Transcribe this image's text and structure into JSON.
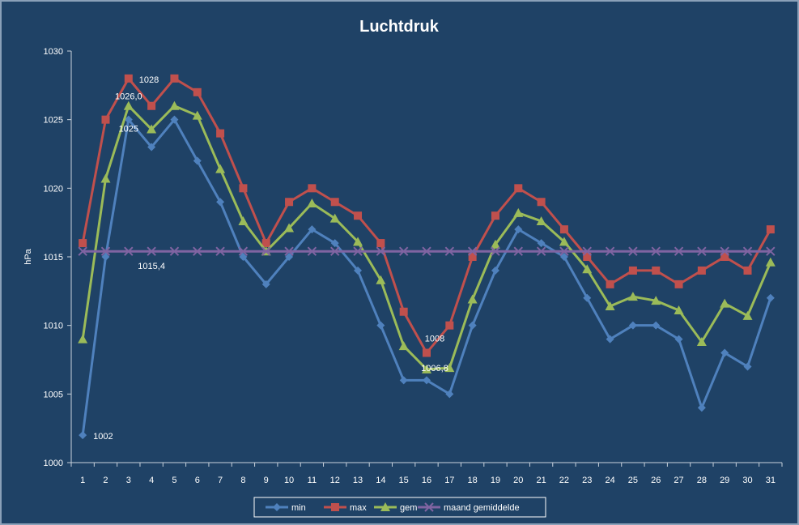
{
  "chart_data": {
    "type": "line",
    "title": "Luchtdruk",
    "ylabel": "hPa",
    "xlabel": "",
    "ylim": [
      1000,
      1030
    ],
    "ytick_step": 5,
    "grid": false,
    "legend_position": "bottom",
    "categories": [
      "1",
      "2",
      "3",
      "4",
      "5",
      "6",
      "7",
      "8",
      "9",
      "10",
      "11",
      "12",
      "13",
      "14",
      "15",
      "16",
      "17",
      "18",
      "19",
      "20",
      "21",
      "22",
      "23",
      "24",
      "25",
      "26",
      "27",
      "28",
      "29",
      "30",
      "31"
    ],
    "series": [
      {
        "name": "min",
        "color": "#4f81bd",
        "marker": "diamond",
        "values": [
          1002,
          1015,
          1025,
          1023,
          1025,
          1022,
          1019,
          1015,
          1013,
          1015,
          1017,
          1016,
          1014,
          1010,
          1006,
          1006,
          1005,
          1010,
          1014,
          1017,
          1016,
          1015,
          1012,
          1009,
          1010,
          1010,
          1009,
          1004,
          1008,
          1007,
          1012
        ]
      },
      {
        "name": "max",
        "color": "#c0504d",
        "marker": "square",
        "values": [
          1016,
          1025,
          1028,
          1026,
          1028,
          1027,
          1024,
          1020,
          1016,
          1019,
          1020,
          1019,
          1018,
          1016,
          1011,
          1008,
          1010,
          1015,
          1018,
          1020,
          1019,
          1017,
          1015,
          1013,
          1014,
          1014,
          1013,
          1014,
          1015,
          1014,
          1017
        ]
      },
      {
        "name": "gem",
        "color": "#9bbb59",
        "marker": "triangle",
        "values": [
          1009.0,
          1020.7,
          1026.0,
          1024.3,
          1026.0,
          1025.3,
          1021.4,
          1017.6,
          1015.4,
          1017.1,
          1018.9,
          1017.8,
          1016.1,
          1013.3,
          1008.5,
          1006.8,
          1006.9,
          1011.9,
          1015.9,
          1018.2,
          1017.6,
          1016.1,
          1014.1,
          1011.4,
          1012.1,
          1011.8,
          1011.1,
          1008.8,
          1011.6,
          1010.7,
          1014.6
        ]
      },
      {
        "name": "maand gemiddelde",
        "color": "#8064a2",
        "marker": "x",
        "values": [
          1015.4,
          1015.4,
          1015.4,
          1015.4,
          1015.4,
          1015.4,
          1015.4,
          1015.4,
          1015.4,
          1015.4,
          1015.4,
          1015.4,
          1015.4,
          1015.4,
          1015.4,
          1015.4,
          1015.4,
          1015.4,
          1015.4,
          1015.4,
          1015.4,
          1015.4,
          1015.4,
          1015.4,
          1015.4,
          1015.4,
          1015.4,
          1015.4,
          1015.4,
          1015.4,
          1015.4
        ]
      }
    ],
    "annotations": [
      {
        "text": "1002",
        "x": "1",
        "y": 1002
      },
      {
        "text": "1028",
        "x": "3",
        "y": 1028
      },
      {
        "text": "1026,0",
        "x": "3",
        "y": 1026
      },
      {
        "text": "1025",
        "x": "3",
        "y": 1025
      },
      {
        "text": "1015,4",
        "x": "4",
        "y": 1015.4
      },
      {
        "text": "1008",
        "x": "16",
        "y": 1008
      },
      {
        "text": "1006,8",
        "x": "16",
        "y": 1006.8
      }
    ]
  }
}
